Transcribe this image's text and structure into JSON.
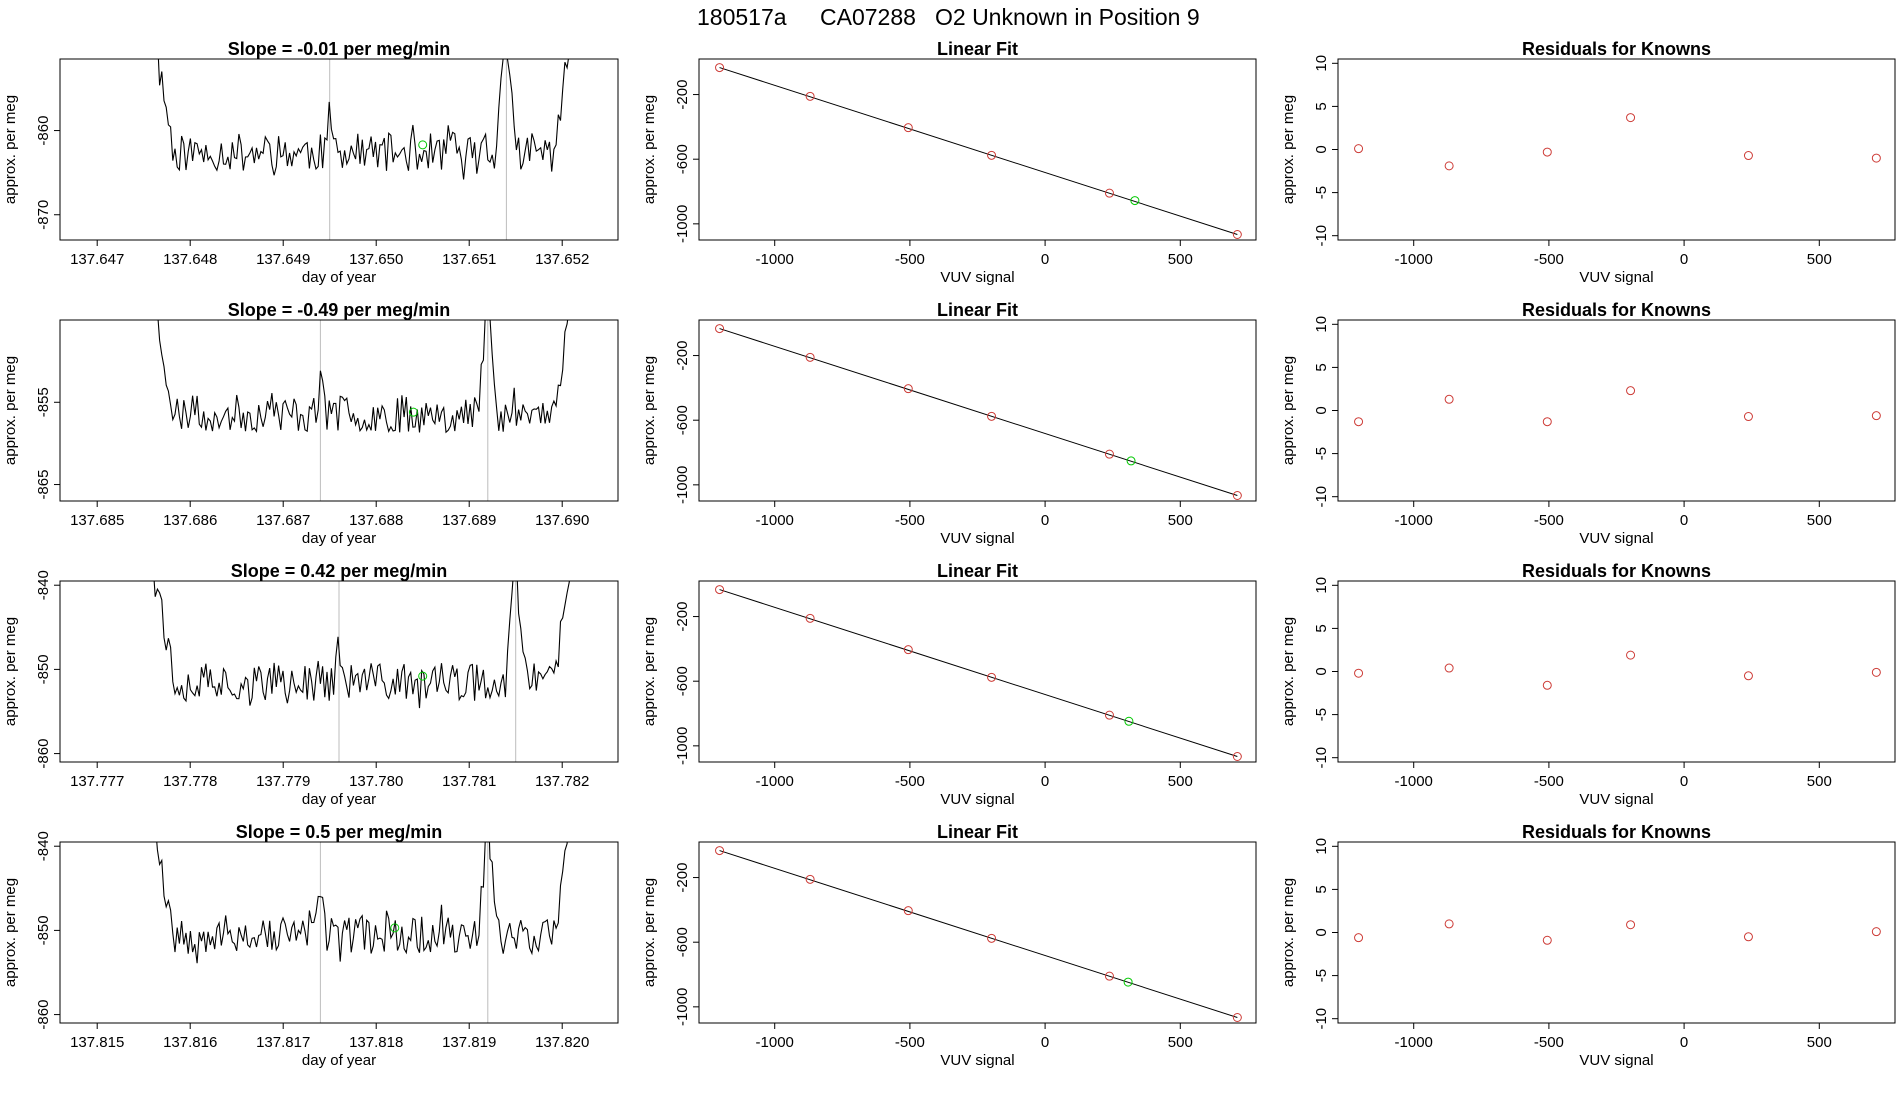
{
  "page": {
    "title_parts": [
      "180517a",
      "CA07288",
      "O2 Unknown in Position  9"
    ]
  },
  "colors": {
    "line": "#000000",
    "known_points": "#cd3b36",
    "unknown_point": "#00c800",
    "cycle_marker": "#bdbdbd"
  },
  "chart_data": [
    {
      "type": "line",
      "row": 0,
      "panel": "trace",
      "title": "Slope =  -0.01  per meg/min",
      "xlabel": "day of year",
      "ylabel": "approx. per meg",
      "xlim": [
        137.6466,
        137.6526
      ],
      "ylim": [
        -873,
        -851.5
      ],
      "xticks": [
        137.647,
        137.648,
        137.649,
        137.65,
        137.651,
        137.652
      ],
      "xticklabels": [
        "137.647",
        "137.648",
        "137.649",
        "137.650",
        "137.651",
        "137.652"
      ],
      "yticks": [
        -860,
        -870
      ],
      "yticklabels": [
        "-860",
        "-870"
      ],
      "x_start": 137.6476,
      "x_end": 137.6521,
      "base": -862.6,
      "amp": 2.3,
      "seed": 11,
      "markers": [
        137.6495,
        137.6514
      ],
      "unknown_point": {
        "x": 137.6505,
        "y": -861.7
      }
    },
    {
      "type": "line",
      "row": 1,
      "panel": "trace",
      "title": "Slope =  -0.49  per meg/min",
      "xlabel": "day of year",
      "ylabel": "approx. per meg",
      "xlim": [
        137.6846,
        137.6906
      ],
      "ylim": [
        -867,
        -845
      ],
      "xticks": [
        137.685,
        137.686,
        137.687,
        137.688,
        137.689,
        137.69
      ],
      "xticklabels": [
        "137.685",
        "137.686",
        "137.687",
        "137.688",
        "137.689",
        "137.690"
      ],
      "yticks": [
        -855,
        -865
      ],
      "yticklabels": [
        "-855",
        "-865"
      ],
      "x_start": 137.6856,
      "x_end": 137.6901,
      "base": -856.4,
      "amp": 2.3,
      "seed": 23,
      "markers": [
        137.6874,
        137.6892
      ],
      "unknown_point": {
        "x": 137.6884,
        "y": -856.2
      }
    },
    {
      "type": "line",
      "row": 2,
      "panel": "trace",
      "title": "Slope =  0.42  per meg/min",
      "xlabel": "day of year",
      "ylabel": "approx. per meg",
      "xlim": [
        137.7766,
        137.7826
      ],
      "ylim": [
        -861,
        -839.5
      ],
      "xticks": [
        137.777,
        137.778,
        137.779,
        137.78,
        137.781,
        137.782
      ],
      "xticklabels": [
        "137.777",
        "137.778",
        "137.779",
        "137.780",
        "137.781",
        "137.782"
      ],
      "yticks": [
        -840,
        -850,
        -860
      ],
      "yticklabels": [
        "-840",
        "-850",
        "-860"
      ],
      "x_start": 137.7776,
      "x_end": 137.7821,
      "base": -851.5,
      "amp": 2.3,
      "seed": 37,
      "markers": [
        137.7796,
        137.7815
      ],
      "unknown_point": {
        "x": 137.7805,
        "y": -850.8
      }
    },
    {
      "type": "line",
      "row": 3,
      "panel": "trace",
      "title": "Slope =  0.5  per meg/min",
      "xlabel": "day of year",
      "ylabel": "approx. per meg",
      "xlim": [
        137.8146,
        137.8206
      ],
      "ylim": [
        -861,
        -839.5
      ],
      "xticks": [
        137.815,
        137.816,
        137.817,
        137.818,
        137.819,
        137.82
      ],
      "xticklabels": [
        "137.815",
        "137.816",
        "137.817",
        "137.818",
        "137.819",
        "137.820"
      ],
      "yticks": [
        -840,
        -850,
        -860
      ],
      "yticklabels": [
        "-840",
        "-850",
        "-860"
      ],
      "x_start": 137.8156,
      "x_end": 137.8201,
      "base": -850.5,
      "amp": 2.3,
      "seed": 53,
      "markers": [
        137.8174,
        137.8192
      ],
      "unknown_point": {
        "x": 137.8182,
        "y": -849.7
      }
    },
    {
      "type": "scatter",
      "row": 0,
      "panel": "fit",
      "title": "Linear Fit",
      "xlabel": "VUV signal",
      "ylabel": "approx. per meg",
      "xlim": [
        -1280,
        780
      ],
      "ylim": [
        -1100,
        20
      ],
      "xticks": [
        -1000,
        -500,
        0,
        500
      ],
      "xticklabels": [
        "-1000",
        "-500",
        "0",
        "500"
      ],
      "yticks": [
        -200,
        -600,
        -1000
      ],
      "yticklabels": [
        "-200",
        "-600",
        "-1000"
      ],
      "knowns": [
        {
          "x": -1204,
          "y": -33
        },
        {
          "x": -869,
          "y": -211
        },
        {
          "x": -506,
          "y": -405
        },
        {
          "x": -198,
          "y": -576
        },
        {
          "x": 238,
          "y": -810
        },
        {
          "x": 711,
          "y": -1066
        }
      ],
      "unknown": {
        "x": 332,
        "y": -856
      },
      "fit_line": {
        "x": [
          -1204,
          711
        ],
        "y": [
          -33,
          -1066
        ]
      }
    },
    {
      "type": "scatter",
      "row": 1,
      "panel": "fit",
      "title": "Linear Fit",
      "xlabel": "VUV signal",
      "ylabel": "approx. per meg",
      "xlim": [
        -1280,
        780
      ],
      "ylim": [
        -1100,
        20
      ],
      "xticks": [
        -1000,
        -500,
        0,
        500
      ],
      "xticklabels": [
        "-1000",
        "-500",
        "0",
        "500"
      ],
      "yticks": [
        -200,
        -600,
        -1000
      ],
      "yticklabels": [
        "-200",
        "-600",
        "-1000"
      ],
      "knowns": [
        {
          "x": -1204,
          "y": -33
        },
        {
          "x": -869,
          "y": -211
        },
        {
          "x": -506,
          "y": -405
        },
        {
          "x": -198,
          "y": -576
        },
        {
          "x": 238,
          "y": -810
        },
        {
          "x": 711,
          "y": -1066
        }
      ],
      "unknown": {
        "x": 318,
        "y": -852
      },
      "fit_line": {
        "x": [
          -1204,
          711
        ],
        "y": [
          -33,
          -1066
        ]
      }
    },
    {
      "type": "scatter",
      "row": 2,
      "panel": "fit",
      "title": "Linear Fit",
      "xlabel": "VUV signal",
      "ylabel": "approx. per meg",
      "xlim": [
        -1280,
        780
      ],
      "ylim": [
        -1100,
        20
      ],
      "xticks": [
        -1000,
        -500,
        0,
        500
      ],
      "xticklabels": [
        "-1000",
        "-500",
        "0",
        "500"
      ],
      "yticks": [
        -200,
        -600,
        -1000
      ],
      "yticklabels": [
        "-200",
        "-600",
        "-1000"
      ],
      "knowns": [
        {
          "x": -1204,
          "y": -33
        },
        {
          "x": -869,
          "y": -211
        },
        {
          "x": -506,
          "y": -405
        },
        {
          "x": -198,
          "y": -576
        },
        {
          "x": 238,
          "y": -810
        },
        {
          "x": 711,
          "y": -1066
        }
      ],
      "unknown": {
        "x": 310,
        "y": -848
      },
      "fit_line": {
        "x": [
          -1204,
          711
        ],
        "y": [
          -33,
          -1066
        ]
      }
    },
    {
      "type": "scatter",
      "row": 3,
      "panel": "fit",
      "title": "Linear Fit",
      "xlabel": "VUV signal",
      "ylabel": "approx. per meg",
      "xlim": [
        -1280,
        780
      ],
      "ylim": [
        -1100,
        20
      ],
      "xticks": [
        -1000,
        -500,
        0,
        500
      ],
      "xticklabels": [
        "-1000",
        "-500",
        "0",
        "500"
      ],
      "yticks": [
        -200,
        -600,
        -1000
      ],
      "yticklabels": [
        "-200",
        "-600",
        "-1000"
      ],
      "knowns": [
        {
          "x": -1204,
          "y": -33
        },
        {
          "x": -869,
          "y": -211
        },
        {
          "x": -506,
          "y": -405
        },
        {
          "x": -198,
          "y": -576
        },
        {
          "x": 238,
          "y": -810
        },
        {
          "x": 711,
          "y": -1066
        }
      ],
      "unknown": {
        "x": 307,
        "y": -847
      },
      "fit_line": {
        "x": [
          -1204,
          711
        ],
        "y": [
          -33,
          -1066
        ]
      }
    },
    {
      "type": "scatter",
      "row": 0,
      "panel": "resid",
      "title": "Residuals for Knowns",
      "xlabel": "VUV signal",
      "ylabel": "approx. per meg",
      "xlim": [
        -1280,
        780
      ],
      "ylim": [
        -10.5,
        10.5
      ],
      "xticks": [
        -1000,
        -500,
        0,
        500
      ],
      "xticklabels": [
        "-1000",
        "-500",
        "0",
        "500"
      ],
      "yticks": [
        10,
        5,
        0,
        -5,
        -10
      ],
      "yticklabels": [
        "10",
        "5",
        "0",
        "-5",
        "-10"
      ],
      "points": [
        {
          "x": -1204,
          "y": 0.1
        },
        {
          "x": -869,
          "y": -1.9
        },
        {
          "x": -506,
          "y": -0.3
        },
        {
          "x": -198,
          "y": 3.7
        },
        {
          "x": 238,
          "y": -0.7
        },
        {
          "x": 711,
          "y": -1.0
        }
      ]
    },
    {
      "type": "scatter",
      "row": 1,
      "panel": "resid",
      "title": "Residuals for Knowns",
      "xlabel": "VUV signal",
      "ylabel": "approx. per meg",
      "xlim": [
        -1280,
        780
      ],
      "ylim": [
        -10.5,
        10.5
      ],
      "xticks": [
        -1000,
        -500,
        0,
        500
      ],
      "xticklabels": [
        "-1000",
        "-500",
        "0",
        "500"
      ],
      "yticks": [
        10,
        5,
        0,
        -5,
        -10
      ],
      "yticklabels": [
        "10",
        "5",
        "0",
        "-5",
        "-10"
      ],
      "points": [
        {
          "x": -1204,
          "y": -1.3
        },
        {
          "x": -869,
          "y": 1.3
        },
        {
          "x": -506,
          "y": -1.3
        },
        {
          "x": -198,
          "y": 2.3
        },
        {
          "x": 238,
          "y": -0.7
        },
        {
          "x": 711,
          "y": -0.6
        }
      ]
    },
    {
      "type": "scatter",
      "row": 2,
      "panel": "resid",
      "title": "Residuals for Knowns",
      "xlabel": "VUV signal",
      "ylabel": "approx. per meg",
      "xlim": [
        -1280,
        780
      ],
      "ylim": [
        -10.5,
        10.5
      ],
      "xticks": [
        -1000,
        -500,
        0,
        500
      ],
      "xticklabels": [
        "-1000",
        "-500",
        "0",
        "500"
      ],
      "yticks": [
        10,
        5,
        0,
        -5,
        -10
      ],
      "yticklabels": [
        "10",
        "5",
        "0",
        "-5",
        "-10"
      ],
      "points": [
        {
          "x": -1204,
          "y": -0.2
        },
        {
          "x": -869,
          "y": 0.4
        },
        {
          "x": -506,
          "y": -1.6
        },
        {
          "x": -198,
          "y": 1.9
        },
        {
          "x": 238,
          "y": -0.5
        },
        {
          "x": 711,
          "y": -0.1
        }
      ]
    },
    {
      "type": "scatter",
      "row": 3,
      "panel": "resid",
      "title": "Residuals for Knowns",
      "xlabel": "VUV signal",
      "ylabel": "approx. per meg",
      "xlim": [
        -1280,
        780
      ],
      "ylim": [
        -10.5,
        10.5
      ],
      "xticks": [
        -1000,
        -500,
        0,
        500
      ],
      "xticklabels": [
        "-1000",
        "-500",
        "0",
        "500"
      ],
      "yticks": [
        10,
        5,
        0,
        -5,
        -10
      ],
      "yticklabels": [
        "10",
        "5",
        "0",
        "-5",
        "-10"
      ],
      "points": [
        {
          "x": -1204,
          "y": -0.6
        },
        {
          "x": -869,
          "y": 1.0
        },
        {
          "x": -506,
          "y": -0.9
        },
        {
          "x": -198,
          "y": 0.9
        },
        {
          "x": 238,
          "y": -0.5
        },
        {
          "x": 711,
          "y": 0.1
        }
      ]
    }
  ]
}
